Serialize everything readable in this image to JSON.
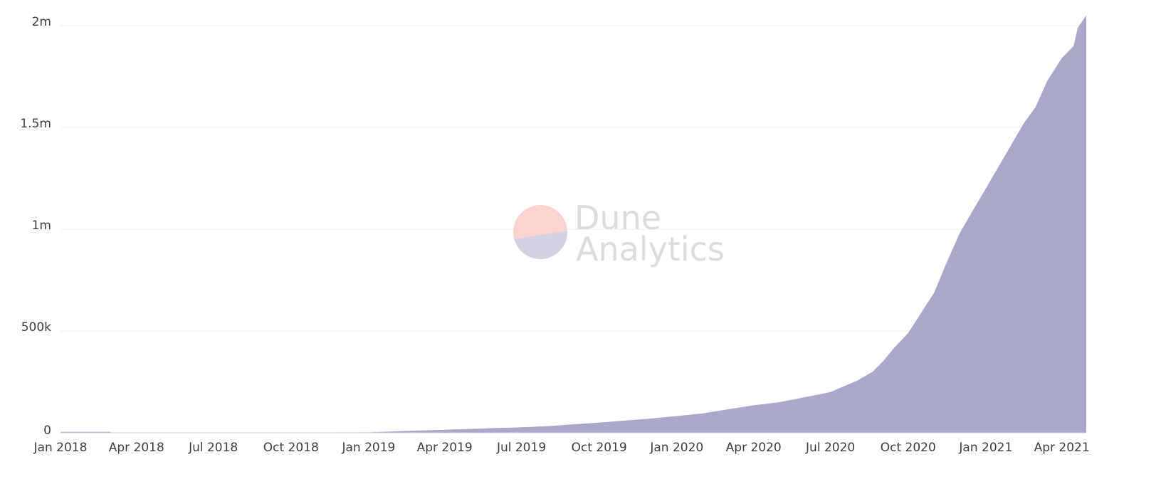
{
  "chart_data": {
    "type": "area",
    "title": "",
    "xlabel": "",
    "ylabel": "",
    "grid": "horizontal",
    "legend": "none",
    "color": "#a9a8cb",
    "x_tick_labels": [
      "Jan 2018",
      "Apr 2018",
      "Jul 2018",
      "Oct 2018",
      "Jan 2019",
      "Apr 2019",
      "Jul 2019",
      "Oct 2019",
      "Jan 2020",
      "Apr 2020",
      "Jul 2020",
      "Oct 2020",
      "Jan 2021",
      "Apr 2021"
    ],
    "y_ticks": [
      {
        "value": 0,
        "label": "0"
      },
      {
        "value": 500000,
        "label": "500k"
      },
      {
        "value": 1000000,
        "label": "1m"
      },
      {
        "value": 1500000,
        "label": "1.5m"
      },
      {
        "value": 2000000,
        "label": "2m"
      }
    ],
    "ylim": [
      0,
      2000000
    ],
    "xlim": [
      "2018-01-01",
      "2021-04-30"
    ],
    "x": [
      "2018-01-01",
      "2018-03-01",
      "2018-03-02",
      "2019-01-01",
      "2019-02-01",
      "2019-03-01",
      "2019-04-01",
      "2019-05-01",
      "2019-06-01",
      "2019-07-01",
      "2019-08-01",
      "2019-09-01",
      "2019-10-01",
      "2019-11-01",
      "2019-12-01",
      "2020-01-01",
      "2020-02-01",
      "2020-03-01",
      "2020-04-01",
      "2020-05-01",
      "2020-06-01",
      "2020-07-01",
      "2020-08-01",
      "2020-08-20",
      "2020-09-01",
      "2020-09-15",
      "2020-10-01",
      "2020-10-15",
      "2020-11-01",
      "2020-11-15",
      "2020-12-01",
      "2020-12-15",
      "2021-01-01",
      "2021-01-15",
      "2021-02-01",
      "2021-02-15",
      "2021-03-01",
      "2021-03-15",
      "2021-04-01",
      "2021-04-15",
      "2021-04-20",
      "2021-04-30"
    ],
    "values": [
      5000,
      5000,
      0,
      2000,
      7000,
      11000,
      15000,
      19000,
      23000,
      27000,
      32000,
      42000,
      50000,
      60000,
      70000,
      82000,
      95000,
      115000,
      135000,
      150000,
      175000,
      200000,
      255000,
      300000,
      350000,
      420000,
      490000,
      580000,
      690000,
      830000,
      980000,
      1080000,
      1200000,
      1300000,
      1420000,
      1520000,
      1600000,
      1730000,
      1840000,
      1900000,
      1990000,
      2050000
    ]
  },
  "watermark": {
    "line1": "Dune",
    "line2": "Analytics"
  },
  "colors": {
    "area": "#a9a8cb",
    "grid": "#ececec",
    "axis_text": "#3d3d3d",
    "watermark_text": "#dcdcdc",
    "watermark_circle_top": "#f9d3cc",
    "watermark_circle_bottom": "#d3d2e2"
  }
}
